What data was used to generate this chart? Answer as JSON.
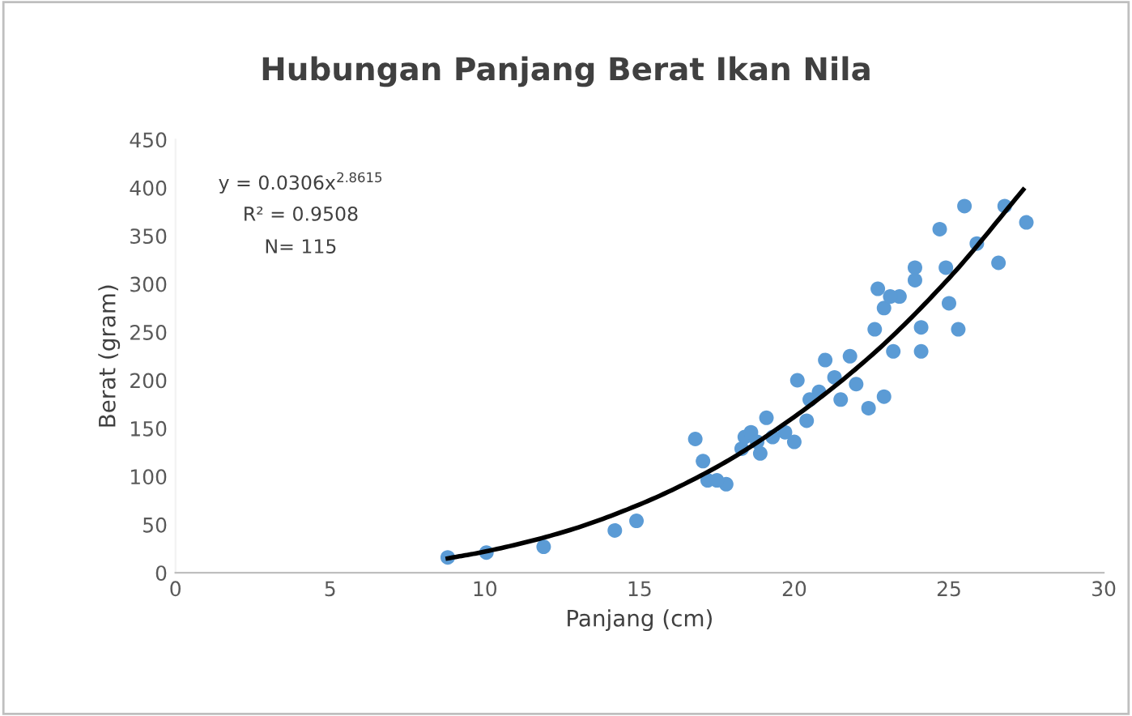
{
  "chart_data": {
    "type": "scatter",
    "title": "Hubungan Panjang Berat Ikan Nila",
    "xlabel": "Panjang (cm)",
    "ylabel": "Berat (gram)",
    "xlim": [
      0,
      30
    ],
    "xticks": [
      0,
      5,
      10,
      15,
      20,
      25,
      30
    ],
    "ylim": [
      0,
      450
    ],
    "yticks": [
      0,
      50,
      100,
      150,
      200,
      250,
      300,
      350,
      400,
      450
    ],
    "grid": false,
    "marker": "circle",
    "series": [
      {
        "color": "#5b9bd5",
        "x": [
          8.8,
          10.05,
          11.9,
          14.2,
          14.9,
          16.8,
          17.05,
          17.2,
          17.8,
          17.5,
          18.3,
          18.4,
          18.6,
          18.9,
          19.1,
          18.8,
          19.3,
          19.7,
          20.1,
          20.0,
          20.4,
          21.0,
          20.8,
          21.3,
          21.8,
          21.5,
          22.0,
          22.4,
          22.9,
          20.5,
          22.6,
          22.7,
          23.2,
          22.9,
          23.4,
          24.1,
          24.1,
          25.0,
          25.3,
          25.5,
          24.7,
          26.8,
          27.5,
          25.9,
          26.6,
          24.9,
          23.9,
          23.9,
          23.1
        ],
        "values": [
          16,
          21,
          27,
          44,
          54,
          139,
          116,
          96,
          92,
          96,
          129,
          141,
          146,
          124,
          161,
          136,
          141,
          146,
          200,
          136,
          158,
          221,
          188,
          203,
          225,
          180,
          196,
          171,
          183,
          180,
          253,
          295,
          230,
          275,
          287,
          255,
          230,
          280,
          253,
          381,
          357,
          381,
          364,
          342,
          322,
          317,
          317,
          304,
          287
        ]
      },
      {
        "type": "line",
        "color": "#000000",
        "line_style": "solid",
        "marker": "none",
        "x": [
          8.8,
          10,
          12.5,
          15,
          17.5,
          20,
          22.5,
          25,
          27.4
        ],
        "values": [
          15,
          22,
          42,
          71,
          110,
          162,
          226,
          306,
          398
        ]
      }
    ],
    "annotations": [
      "y = 0.0306x$^{2.8615}$",
      "R² = 0.9508",
      "N= 115"
    ]
  }
}
